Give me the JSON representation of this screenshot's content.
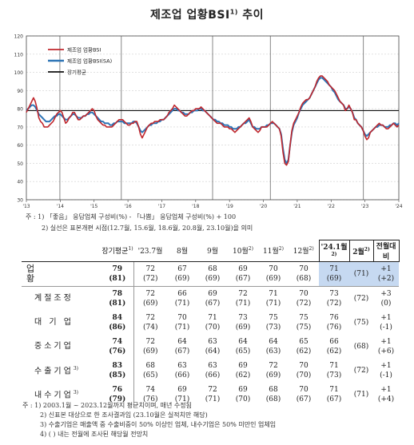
{
  "title": "제조업 업황BSI",
  "title_sup": "1)",
  "chart_data": {
    "type": "line",
    "y_ticks": [
      30,
      40,
      50,
      60,
      70,
      80,
      90,
      100,
      110,
      120
    ],
    "ylim": [
      30,
      120
    ],
    "x_ticks": [
      "'13",
      "'14",
      "'15",
      "'16",
      "'17",
      "'18",
      "'19",
      "'20",
      "'21",
      "'22",
      "'23",
      "'24"
    ],
    "legend": [
      "제조업 업황BSI",
      "제조업 업황BSI(SA)",
      "장기평균"
    ],
    "long_term_average": 79,
    "series": [
      {
        "name": "제조업 업황BSI",
        "color": "#c0272d",
        "values": [
          78,
          80,
          82,
          84,
          86,
          84,
          80,
          75,
          73,
          72,
          70,
          70,
          70,
          71,
          72,
          73,
          75,
          77,
          78,
          79,
          78,
          75,
          72,
          73,
          75,
          76,
          78,
          78,
          76,
          74,
          74,
          75,
          76,
          76,
          77,
          78,
          79,
          80,
          79,
          76,
          74,
          73,
          72,
          71,
          71,
          70,
          70,
          70,
          70,
          71,
          72,
          73,
          74,
          74,
          74,
          73,
          72,
          71,
          71,
          72,
          72,
          73,
          73,
          70,
          66,
          64,
          66,
          68,
          70,
          71,
          72,
          72,
          73,
          73,
          73,
          74,
          74,
          74,
          75,
          76,
          78,
          79,
          80,
          82,
          81,
          80,
          79,
          78,
          77,
          76,
          76,
          77,
          78,
          79,
          79,
          80,
          80,
          80,
          81,
          80,
          79,
          78,
          77,
          76,
          75,
          74,
          73,
          72,
          72,
          72,
          71,
          70,
          70,
          70,
          69,
          69,
          68,
          67,
          68,
          69,
          70,
          71,
          72,
          73,
          74,
          75,
          73,
          70,
          69,
          68,
          67,
          68,
          70,
          70,
          70,
          70,
          71,
          72,
          73,
          72,
          71,
          70,
          69,
          65,
          56,
          50,
          49,
          51,
          60,
          68,
          72,
          74,
          76,
          78,
          81,
          83,
          84,
          85,
          85,
          86,
          88,
          90,
          92,
          95,
          97,
          98,
          98,
          97,
          96,
          95,
          93,
          92,
          91,
          90,
          88,
          86,
          84,
          83,
          82,
          79,
          80,
          82,
          80,
          78,
          74,
          74,
          72,
          71,
          70,
          68,
          65,
          63,
          64,
          67,
          68,
          69,
          70,
          71,
          72,
          71,
          71,
          70,
          69,
          69,
          70,
          71,
          72,
          71,
          70,
          71
        ]
      },
      {
        "name": "제조업 업황BSI(SA)",
        "color": "#2e75b6",
        "values": [
          79,
          80,
          81,
          82,
          82,
          81,
          79,
          77,
          76,
          75,
          74,
          73,
          73,
          73,
          74,
          75,
          76,
          76,
          77,
          77,
          76,
          75,
          74,
          74,
          75,
          76,
          77,
          77,
          76,
          75,
          75,
          75,
          76,
          76,
          77,
          77,
          78,
          78,
          77,
          76,
          75,
          74,
          73,
          73,
          72,
          72,
          72,
          71,
          71,
          72,
          72,
          73,
          73,
          73,
          73,
          72,
          72,
          72,
          72,
          72,
          73,
          73,
          72,
          70,
          68,
          67,
          68,
          69,
          70,
          71,
          71,
          72,
          72,
          72,
          73,
          73,
          74,
          74,
          75,
          76,
          77,
          78,
          79,
          80,
          80,
          79,
          79,
          78,
          78,
          77,
          77,
          77,
          78,
          78,
          79,
          79,
          79,
          80,
          80,
          79,
          79,
          78,
          77,
          76,
          75,
          74,
          74,
          73,
          73,
          72,
          72,
          71,
          71,
          71,
          70,
          70,
          69,
          69,
          69,
          70,
          70,
          71,
          72,
          72,
          73,
          74,
          72,
          70,
          70,
          69,
          69,
          69,
          70,
          70,
          70,
          71,
          71,
          72,
          72,
          72,
          71,
          70,
          69,
          66,
          58,
          52,
          50,
          52,
          60,
          67,
          71,
          73,
          75,
          78,
          80,
          82,
          83,
          84,
          85,
          86,
          88,
          90,
          92,
          94,
          96,
          97,
          97,
          96,
          95,
          94,
          93,
          92,
          90,
          89,
          87,
          85,
          84,
          83,
          82,
          80,
          80,
          81,
          80,
          78,
          75,
          74,
          72,
          71,
          70,
          68,
          66,
          65,
          66,
          67,
          68,
          69,
          70,
          70,
          71,
          71,
          71,
          70,
          70,
          70,
          71,
          71,
          72,
          72,
          71,
          72
        ]
      }
    ]
  },
  "notes_top": [
    "주 : 1) 「좋음」 응답업체 구성비(%) - 「나쁨」 응답업체 구성비(%) + 100",
    "2) 실선은 표본개편 시점(12.7월, 15.6월, 18.6월, 20.8월, 23.10월)을 의미"
  ],
  "table": {
    "headers": [
      "장기평균",
      "'23.7월",
      "8월",
      "9월",
      "10월",
      "11월",
      "12월",
      "'24.1월",
      "2월",
      "전월대비"
    ],
    "header_sups": [
      "1)",
      "",
      "",
      "",
      "2)",
      "2)",
      "2)",
      "2)",
      "2)",
      ""
    ],
    "rows": [
      {
        "label": "업 황",
        "avg": "79",
        "avg2": "(81)",
        "vals": [
          "72",
          "67",
          "68",
          "69",
          "70",
          "70",
          "71",
          ""
        ],
        "vals2": [
          "(72)",
          "(69)",
          "(69)",
          "(67)",
          "(69)",
          "(68)",
          "(69)",
          "(71)"
        ],
        "diff": "+1",
        "diff2": "(+2)"
      },
      {
        "label": "계절조정",
        "avg": "78",
        "avg2": "(81)",
        "vals": [
          "72",
          "66",
          "69",
          "72",
          "71",
          "70",
          "73",
          ""
        ],
        "vals2": [
          "(69)",
          "(71)",
          "(67)",
          "(71)",
          "(71)",
          "(72)",
          "(72)",
          "(72)"
        ],
        "diff": "+3",
        "diff2": "(0)"
      },
      {
        "label": "대 기 업",
        "avg": "84",
        "avg2": "(86)",
        "vals": [
          "72",
          "70",
          "71",
          "73",
          "75",
          "75",
          "76",
          ""
        ],
        "vals2": [
          "(74)",
          "(71)",
          "(70)",
          "(69)",
          "(73)",
          "(75)",
          "(76)",
          "(75)"
        ],
        "diff": "+1",
        "diff2": "(-1)"
      },
      {
        "label": "중소기업",
        "avg": "74",
        "avg2": "(76)",
        "vals": [
          "72",
          "64",
          "63",
          "64",
          "64",
          "65",
          "66",
          ""
        ],
        "vals2": [
          "(69)",
          "(67)",
          "(64)",
          "(65)",
          "(63)",
          "(62)",
          "(62)",
          "(68)"
        ],
        "diff": "+1",
        "diff2": "(+6)"
      },
      {
        "label": "수출기업",
        "label_sup": "3)",
        "avg": "83",
        "avg2": "(85)",
        "vals": [
          "68",
          "63",
          "63",
          "69",
          "72",
          "70",
          "71",
          ""
        ],
        "vals2": [
          "(65)",
          "(66)",
          "(66)",
          "(62)",
          "(69)",
          "(70)",
          "(73)",
          "(72)"
        ],
        "diff": "+1",
        "diff2": "(-1)"
      },
      {
        "label": "내수기업",
        "label_sup": "3)",
        "avg": "76",
        "avg2": "(79)",
        "vals": [
          "74",
          "69",
          "72",
          "69",
          "68",
          "70",
          "71",
          ""
        ],
        "vals2": [
          "(76)",
          "(71)",
          "(71)",
          "(70)",
          "(68)",
          "(67)",
          "(67)",
          "(71)"
        ],
        "diff": "+1",
        "diff2": "(+4)"
      }
    ]
  },
  "notes_bottom": [
    "주 : 1) 2003.1월 ~ 2023.12월까지 평균치이며, 매년 수정됨",
    "2) 신표본 대상으로 한 조사결과임 (23.10월은 실적치만 해당)",
    "3) 수출기업은 매출액 중 수출비중이 50% 이상인 업체, 내수기업은 50% 미만인 업체임",
    "4) ( ) 내는 전월에 조사된 해당월 전망치"
  ]
}
